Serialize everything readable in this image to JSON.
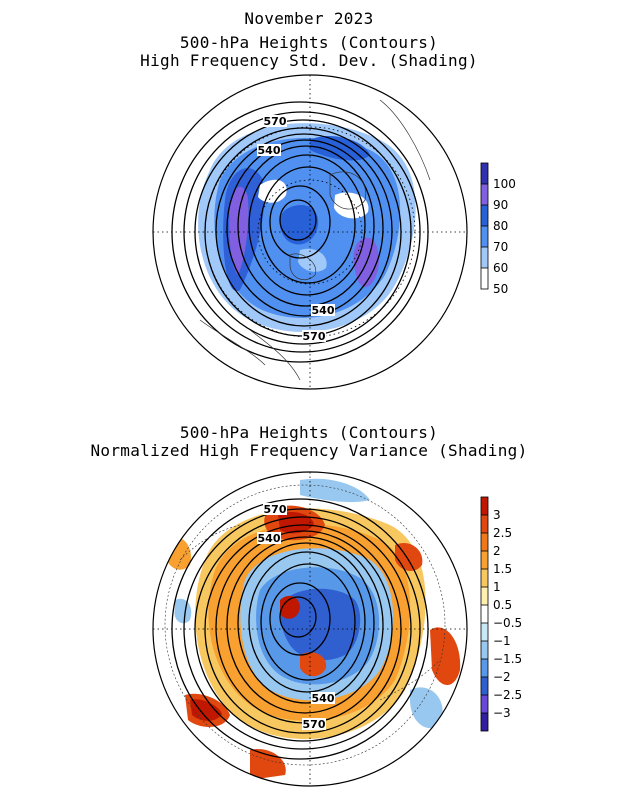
{
  "top_panel": {
    "title_lines": [
      "November 2023",
      "500-hPa Heights (Contours)",
      "High Frequency Std. Dev. (Shading)"
    ],
    "contour_labels": [
      "570",
      "540",
      "540",
      "570"
    ],
    "colorbar": {
      "labels": [
        "100",
        "90",
        "80",
        "70",
        "60",
        "50"
      ],
      "colors": [
        "#3030b0",
        "#8060e0",
        "#2860d8",
        "#5090f0",
        "#a0c8f8",
        "#ffffff"
      ]
    }
  },
  "bottom_panel": {
    "title_lines": [
      "500-hPa Heights (Contours)",
      "Normalized High Frequency Variance (Shading)"
    ],
    "contour_labels": [
      "570",
      "540",
      "540",
      "570"
    ],
    "colorbar": {
      "labels": [
        "3",
        "2.5",
        "2",
        "1.5",
        "1",
        "0.5",
        "−0.5",
        "−1",
        "−1.5",
        "−2",
        "−2.5",
        "−3"
      ],
      "colors": [
        "#c01800",
        "#e04810",
        "#f07818",
        "#f8a030",
        "#f8c860",
        "#fff0b0",
        "#ffffff",
        "#c8e8f8",
        "#98c8f0",
        "#5898e8",
        "#3060d0",
        "#6848d8",
        "#3020a0"
      ]
    }
  }
}
